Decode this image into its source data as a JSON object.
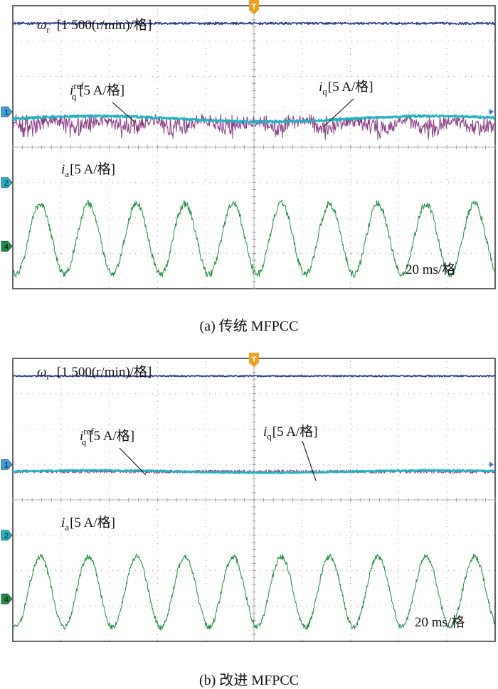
{
  "chart_data": [
    {
      "type": "line",
      "caption": "(a) 传统 MFPCC",
      "time_scale": "20 ms/格",
      "channel_markers": [
        "1",
        "2",
        "4"
      ],
      "trigger_marker": "T",
      "series": [
        {
          "id": "omega",
          "label": "ω",
          "label_sub": "r",
          "label_scale": "[1 500(r/min)/格]",
          "color": "#2b3c8f",
          "level_div": 7.5,
          "noise_div": 0.03
        },
        {
          "id": "iq",
          "label": "i",
          "label_sub": "q",
          "label_scale": "[5 A/格]",
          "color": "#8a3d86",
          "level_div": 4.8,
          "ripple_div": 0.3,
          "noise_div": 0.15
        },
        {
          "id": "iqref",
          "label": "i",
          "label_sub": "q",
          "label_sup": "ref",
          "label_scale": "[5 A/格]",
          "color": "#1fb2c4",
          "level_div": 4.8,
          "noise_div": 0.03
        },
        {
          "id": "ia",
          "label": "i",
          "label_sub": "a",
          "label_scale": "[5 A/格]",
          "color": "#1f8c3a",
          "amplitude_div": 1.0,
          "offset_div": 1.4,
          "periods_per_screen": 10,
          "noise_div": 0.1
        }
      ]
    },
    {
      "type": "line",
      "caption": "(b) 改进 MFPCC",
      "time_scale": "20 ms/格",
      "channel_markers": [
        "1",
        "2",
        "4"
      ],
      "trigger_marker": "T",
      "series": [
        {
          "id": "omega",
          "label": "ω",
          "label_sub": "r",
          "label_scale": "[1 500(r/min)/格]",
          "color": "#2b3c8f",
          "level_div": 7.5,
          "noise_div": 0.02
        },
        {
          "id": "iq",
          "label": "i",
          "label_sub": "q",
          "label_scale": "[5 A/格]",
          "color": "#8a3d86",
          "level_div": 4.8,
          "ripple_div": 0.0,
          "noise_div": 0.05
        },
        {
          "id": "iqref",
          "label": "i",
          "label_sub": "q",
          "label_sup": "ref",
          "label_scale": "[5 A/格]",
          "color": "#1fb2c4",
          "level_div": 4.8,
          "noise_div": 0.02
        },
        {
          "id": "ia",
          "label": "i",
          "label_sub": "a",
          "label_scale": "[5 A/格]",
          "color": "#1f8c3a",
          "amplitude_div": 1.0,
          "offset_div": 1.4,
          "periods_per_screen": 10,
          "noise_div": 0.08
        }
      ]
    }
  ]
}
